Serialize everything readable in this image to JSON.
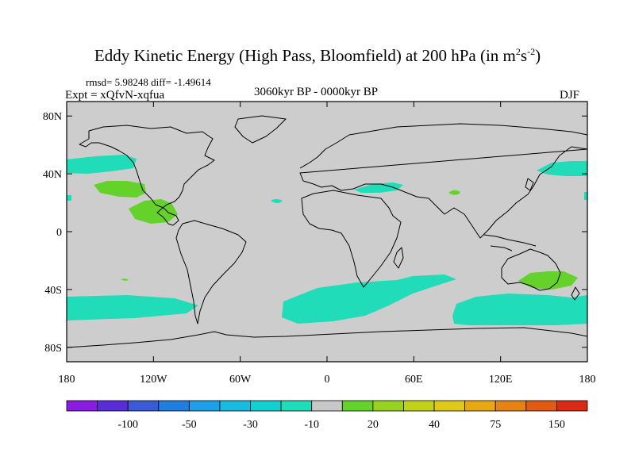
{
  "title": {
    "main": "Eddy Kinetic Energy (High Pass, Bloomfield) at 200 hPa (in m",
    "sup1": "2",
    "mid": "s",
    "sup2": "-2",
    "close": ")"
  },
  "stats": "rmsd= 5.98248 diff= -1.49614",
  "experiment": "Expt = xQfvN-xqfua",
  "period": "3060kyr BP - 0000kyr BP",
  "season": "DJF",
  "map": {
    "projection": "cylindrical equidistant",
    "lon_range": [
      -180,
      180
    ],
    "lat_range": [
      -90,
      90
    ],
    "y_ticks": [
      {
        "lat": 80,
        "label": "80N"
      },
      {
        "lat": 40,
        "label": "40N"
      },
      {
        "lat": 0,
        "label": "0"
      },
      {
        "lat": -40,
        "label": "40S"
      },
      {
        "lat": -80,
        "label": "80S"
      }
    ],
    "x_ticks": [
      {
        "lon": -180,
        "label": "180"
      },
      {
        "lon": -120,
        "label": "120W"
      },
      {
        "lon": -60,
        "label": "60W"
      },
      {
        "lon": 0,
        "label": "0"
      },
      {
        "lon": 60,
        "label": "60E"
      },
      {
        "lon": 120,
        "label": "120E"
      },
      {
        "lon": 180,
        "label": "180"
      }
    ]
  },
  "colorbar": {
    "colors": [
      "#8a1ce0",
      "#5a2cd8",
      "#3b5ad8",
      "#1f7ee0",
      "#1ea0e8",
      "#18bce0",
      "#12d0d0",
      "#20dcb8",
      "#c8c8c8",
      "#64d22a",
      "#96d21e",
      "#c0d21a",
      "#e0c81a",
      "#e8a814",
      "#e48214",
      "#e05a14",
      "#d82a14"
    ],
    "labels": [
      {
        "index": 2,
        "text": "-100"
      },
      {
        "index": 4,
        "text": "-50"
      },
      {
        "index": 6,
        "text": "-30"
      },
      {
        "index": 8,
        "text": "-10"
      },
      {
        "index": 10,
        "text": "20"
      },
      {
        "index": 12,
        "text": "40"
      },
      {
        "index": 14,
        "text": "75"
      },
      {
        "index": 16,
        "text": "150"
      }
    ]
  },
  "colors": {
    "background": "#cdcdcd",
    "negative_anomaly": "#20dcb8",
    "positive_anomaly": "#64d22a",
    "coast": "#000000"
  },
  "anomaly_regions": [
    {
      "name": "North Pacific east band",
      "sign": "negative",
      "lon": [
        -180,
        -140
      ],
      "lat": [
        30,
        40
      ]
    },
    {
      "name": "Subtropical North Pacific",
      "sign": "positive",
      "lon": [
        -160,
        -140
      ],
      "lat": [
        23,
        31
      ]
    },
    {
      "name": "East Pacific",
      "sign": "positive",
      "lon": [
        -150,
        -125
      ],
      "lat": [
        5,
        20
      ]
    },
    {
      "name": "North Atlantic spot",
      "sign": "negative",
      "lon": [
        -35,
        -30
      ],
      "lat": [
        18,
        22
      ]
    },
    {
      "name": "Mediterranean jet",
      "sign": "negative",
      "lon": [
        5,
        38
      ],
      "lat": [
        23,
        30
      ]
    },
    {
      "name": "Arabian spot",
      "sign": "positive",
      "lon": [
        50,
        55
      ],
      "lat": [
        20,
        24
      ]
    },
    {
      "name": "Northwest Pacific",
      "sign": "negative",
      "lon": [
        150,
        180
      ],
      "lat": [
        28,
        38
      ]
    },
    {
      "name": "South Pacific",
      "sign": "negative",
      "lon": [
        -180,
        -150
      ],
      "lat": [
        -55,
        -40
      ]
    },
    {
      "name": "South Atlantic-Indian",
      "sign": "negative",
      "lon": [
        -55,
        60
      ],
      "lat": [
        -58,
        -40
      ]
    },
    {
      "name": "Southern Indian-Australia",
      "sign": "negative",
      "lon": [
        85,
        180
      ],
      "lat": [
        -60,
        -45
      ]
    },
    {
      "name": "Tasman",
      "sign": "positive",
      "lon": [
        140,
        162
      ],
      "lat": [
        -35,
        -25
      ]
    }
  ]
}
